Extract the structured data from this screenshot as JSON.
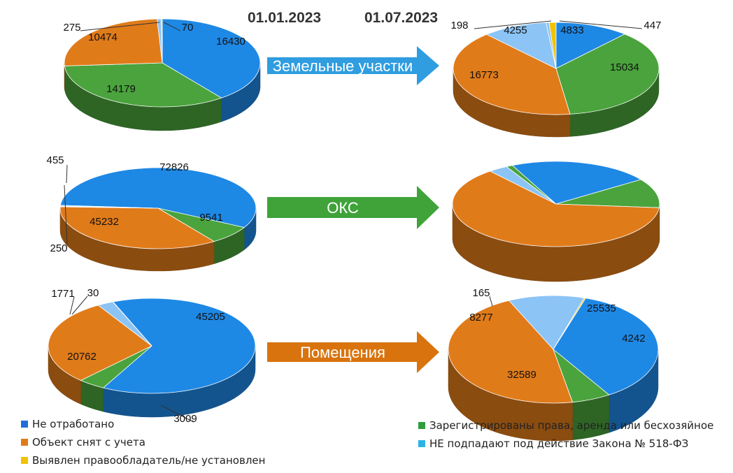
{
  "headers": {
    "date_left": "01.01.2023",
    "date_right": "01.07.2023"
  },
  "rows": [
    {
      "arrow_label": "Земельные участки",
      "arrow_color": "#2f9de0"
    },
    {
      "arrow_label": "ОКС",
      "arrow_color": "#3fa33a"
    },
    {
      "arrow_label": "Помещения",
      "arrow_color": "#d9730d"
    }
  ],
  "legend": [
    {
      "label": "Не отработано",
      "color": "#1e6fd9"
    },
    {
      "label": "Объект снят с учета",
      "color": "#e07b1a"
    },
    {
      "label": "Выявлен правообладатель/не установлен",
      "color": "#f2c200"
    },
    {
      "label": "Зарегистрированы права, аренда или бесхозяйное",
      "color": "#2e9e3e"
    },
    {
      "label": "НЕ подпадают под действие Закона № 518-ФЗ",
      "color": "#2bb3e8"
    }
  ],
  "colors": {
    "not_processed": "#1e88e5",
    "removed": "#e07b1a",
    "owner_found": "#f2c200",
    "registered": "#4aa33c",
    "not_applicable": "#8cc4f5"
  },
  "chart_data": [
    {
      "type": "pie",
      "name": "Земельные участки 01.01.2023",
      "slices": [
        {
          "category": "not_processed",
          "value": 16430,
          "label": "16430"
        },
        {
          "category": "registered",
          "value": 14179,
          "label": "14179"
        },
        {
          "category": "removed",
          "value": 10474,
          "label": "10474"
        },
        {
          "category": "not_applicable",
          "value": 275,
          "label": "275"
        },
        {
          "category": "owner_found",
          "value": 70,
          "label": "70"
        }
      ]
    },
    {
      "type": "pie",
      "name": "Земельные участки 01.07.2023",
      "slices": [
        {
          "category": "not_processed",
          "value": 4833,
          "label": "4833"
        },
        {
          "category": "registered",
          "value": 15034,
          "label": "15034"
        },
        {
          "category": "removed",
          "value": 16773,
          "label": "16773"
        },
        {
          "category": "not_applicable",
          "value": 4255,
          "label": "4255"
        },
        {
          "category": "not_applicable",
          "value": 198,
          "label": "198"
        },
        {
          "category": "owner_found",
          "value": 447,
          "label": "447"
        }
      ]
    },
    {
      "type": "pie",
      "name": "ОКС 01.01.2023",
      "slices": [
        {
          "category": "not_processed",
          "value": 72826,
          "label": "72826"
        },
        {
          "category": "registered",
          "value": 9541,
          "label": "9541"
        },
        {
          "category": "removed",
          "value": 45232,
          "label": "45232"
        },
        {
          "category": "owner_found",
          "value": 250,
          "label": "250"
        },
        {
          "category": "not_applicable",
          "value": 455,
          "label": "455"
        }
      ]
    },
    {
      "type": "pie",
      "name": "ОКС 01.07.2023",
      "slices": [
        {
          "category": "not_processed",
          "value": 22,
          "label": ""
        },
        {
          "category": "registered",
          "value": 11,
          "label": ""
        },
        {
          "category": "removed",
          "value": 62,
          "label": ""
        },
        {
          "category": "not_applicable",
          "value": 3,
          "label": ""
        },
        {
          "category": "registered",
          "value": 1,
          "label": ""
        }
      ]
    },
    {
      "type": "pie",
      "name": "Помещения 01.01.2023",
      "slices": [
        {
          "category": "not_processed",
          "value": 45205,
          "label": "45205"
        },
        {
          "category": "registered",
          "value": 3009,
          "label": "3009"
        },
        {
          "category": "removed",
          "value": 20762,
          "label": "20762"
        },
        {
          "category": "not_applicable",
          "value": 1771,
          "label": "1771"
        },
        {
          "category": "owner_found",
          "value": 30,
          "label": "30"
        }
      ]
    },
    {
      "type": "pie",
      "name": "Помещения 01.07.2023",
      "slices": [
        {
          "category": "not_processed",
          "value": 25535,
          "label": "25535"
        },
        {
          "category": "registered",
          "value": 4242,
          "label": "4242"
        },
        {
          "category": "removed",
          "value": 32589,
          "label": "32589"
        },
        {
          "category": "not_applicable",
          "value": 8277,
          "label": "8277"
        },
        {
          "category": "owner_found",
          "value": 165,
          "label": "165"
        }
      ]
    }
  ]
}
